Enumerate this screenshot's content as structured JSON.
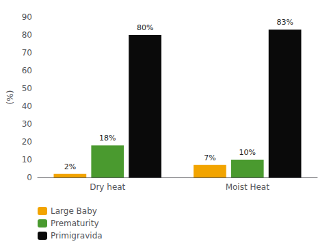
{
  "chart_data": {
    "type": "bar",
    "categories": [
      "Dry heat",
      "Moist Heat"
    ],
    "series": [
      {
        "name": "Large Baby",
        "color": "#F2A400",
        "values": [
          2,
          7
        ],
        "value_labels": [
          "2%",
          "7%"
        ]
      },
      {
        "name": "Prematurity",
        "color": "#4A9A2F",
        "values": [
          18,
          10
        ],
        "value_labels": [
          "18%",
          "10%"
        ]
      },
      {
        "name": "Primigravida",
        "color": "#0a0a0a",
        "values": [
          80,
          83
        ],
        "value_labels": [
          "80%",
          "83%"
        ]
      }
    ],
    "ylabel": "(%)",
    "ylim": [
      0,
      90
    ],
    "yticks": [
      0,
      10,
      20,
      30,
      40,
      50,
      60,
      70,
      80,
      90
    ],
    "grid": false,
    "legend": "lower left",
    "data_labels": true
  }
}
